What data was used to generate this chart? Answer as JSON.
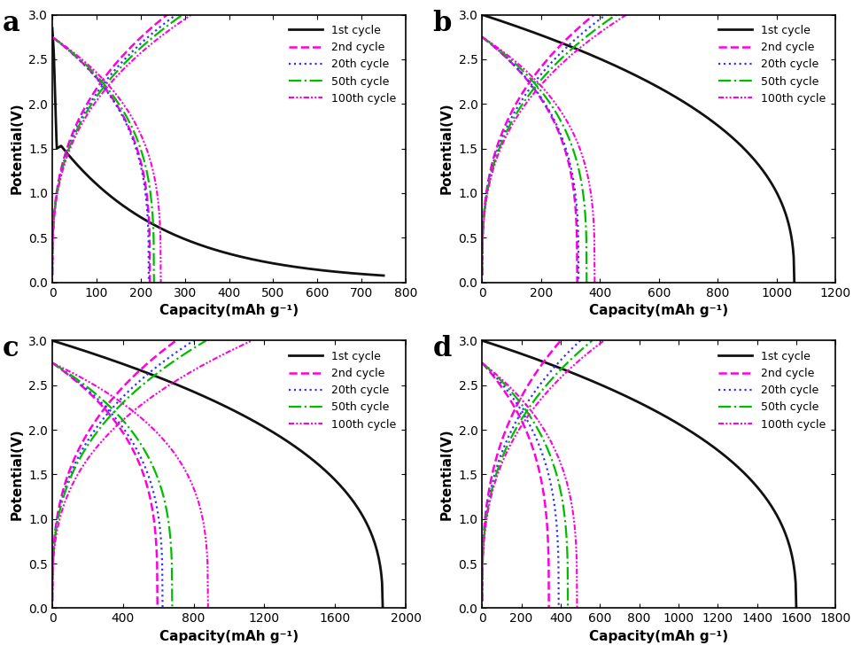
{
  "panels": [
    {
      "label": "a",
      "xlim": [
        0,
        800
      ],
      "xticks": [
        0,
        100,
        200,
        300,
        400,
        500,
        600,
        700,
        800
      ],
      "discharge_end": 750,
      "charge_ends": [
        260,
        280,
        295,
        315
      ],
      "discharge_bump": true
    },
    {
      "label": "b",
      "xlim": [
        0,
        1200
      ],
      "xticks": [
        0,
        200,
        400,
        600,
        800,
        1000,
        1200
      ],
      "discharge_end": 1060,
      "charge_ends": [
        380,
        420,
        455,
        490
      ],
      "discharge_bump": false
    },
    {
      "label": "c",
      "xlim": [
        0,
        2000
      ],
      "xticks": [
        0,
        400,
        800,
        1200,
        1600,
        2000
      ],
      "discharge_end": 1870,
      "charge_ends": [
        700,
        800,
        870,
        1130
      ],
      "discharge_bump": false
    },
    {
      "label": "d",
      "xlim": [
        0,
        1800
      ],
      "xticks": [
        0,
        200,
        400,
        600,
        800,
        1000,
        1200,
        1400,
        1600,
        1800
      ],
      "discharge_end": 1600,
      "charge_ends": [
        400,
        500,
        560,
        620
      ],
      "discharge_bump": false
    }
  ],
  "ylim": [
    0,
    3.0
  ],
  "yticks": [
    0.0,
    0.5,
    1.0,
    1.5,
    2.0,
    2.5,
    3.0
  ],
  "ylabel": "Potential(V)",
  "xlabel": "Capacity(mAh g⁻¹)",
  "colors": [
    "#000000",
    "#ff00ff",
    "#0000ff",
    "#00aa00",
    "#ff00ff"
  ],
  "legend_labels": [
    "1st cycle",
    "2nd cycle",
    "20th cycle",
    "50th cycle",
    "100th cycle"
  ],
  "linestyles": [
    "-",
    "--",
    ":",
    "-.",
    "-."
  ],
  "linewidths": [
    2.0,
    1.8,
    1.5,
    1.5,
    1.5
  ]
}
